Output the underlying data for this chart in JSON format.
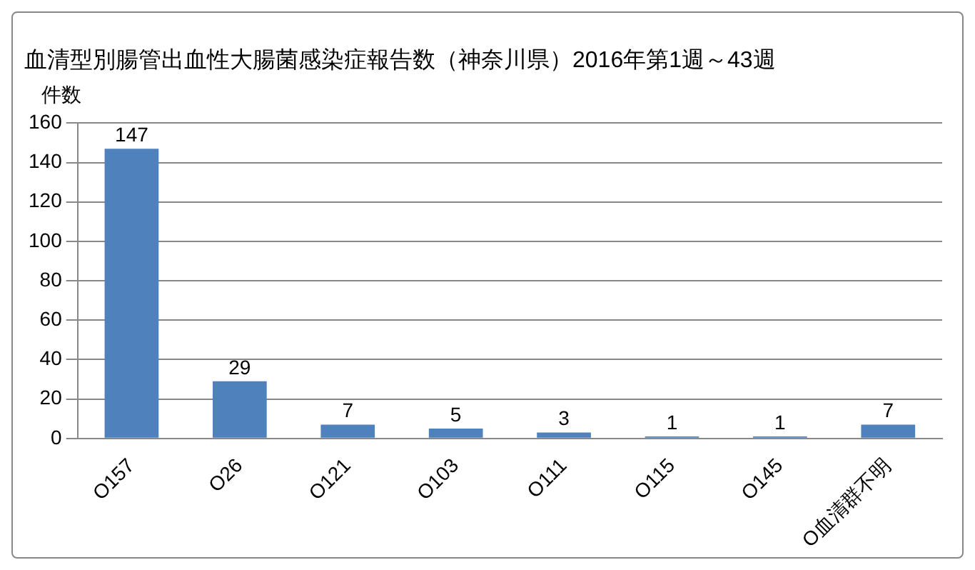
{
  "chart_data": {
    "type": "bar",
    "title": "血清型別腸管出血性大腸菌感染症報告数（神奈川県）2016年第1週～43週",
    "ylabel": "件数",
    "categories": [
      "O157",
      "O26",
      "O121",
      "O103",
      "O111",
      "O115",
      "O145",
      "O血清群不明"
    ],
    "values": [
      147,
      29,
      7,
      5,
      3,
      1,
      1,
      7
    ],
    "color": "#4f81bd",
    "ylim": [
      0,
      160
    ],
    "yticks": [
      0,
      20,
      40,
      60,
      80,
      100,
      120,
      140,
      160
    ],
    "grid": "y",
    "data_labels": true,
    "legend": false
  }
}
